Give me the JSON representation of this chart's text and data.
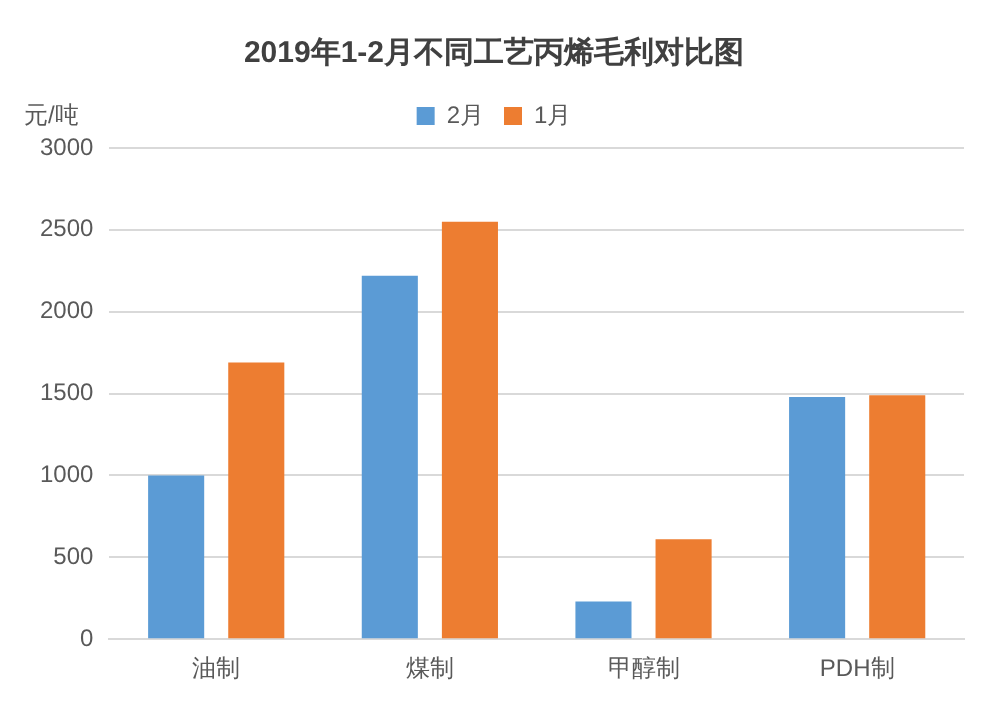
{
  "chart_data": {
    "type": "bar",
    "title": "2019年1-2月不同工艺丙烯毛利对比图",
    "ylabel": "元/吨",
    "categories": [
      "油制",
      "煤制",
      "甲醇制",
      "PDH制"
    ],
    "series": [
      {
        "name": "2月",
        "color": "#5b9bd5",
        "values": [
          1000,
          2220,
          230,
          1480
        ]
      },
      {
        "name": "1月",
        "color": "#ed7d31",
        "values": [
          1690,
          2550,
          610,
          1490
        ]
      }
    ],
    "ylim": [
      0,
      3000
    ],
    "yticks": [
      0,
      500,
      1000,
      1500,
      2000,
      2500,
      3000
    ],
    "grid": "y",
    "legend": "top"
  }
}
